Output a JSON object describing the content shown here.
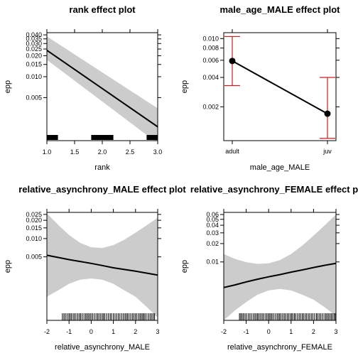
{
  "chart_data": [
    {
      "type": "line",
      "title": "rank effect plot",
      "xlabel": "rank",
      "ylabel": "epp",
      "xlim": [
        1.0,
        3.0
      ],
      "y_scale": "log",
      "ylim": [
        0.0012,
        0.043
      ],
      "x_ticks": [
        1.0,
        1.5,
        2.0,
        2.5,
        3.0
      ],
      "x_tick_labels": [
        "1.0",
        "1.5",
        "2.0",
        "2.5",
        "3.0"
      ],
      "y_ticks": [
        0.005,
        0.01,
        0.015,
        0.02,
        0.025,
        0.03,
        0.035,
        0.04
      ],
      "y_tick_labels": [
        "0.005",
        "0.010",
        "0.015",
        "0.020",
        "0.025",
        "0.030",
        "0.035",
        "0.040"
      ],
      "x": [
        1.0,
        3.0
      ],
      "fit": [
        0.024,
        0.0019
      ],
      "lower": [
        0.0175,
        0.0011
      ],
      "upper": [
        0.038,
        0.0035
      ],
      "rug_segments": [
        [
          1.0,
          1.2
        ],
        [
          1.8,
          2.2
        ],
        [
          2.8,
          3.0
        ]
      ]
    },
    {
      "type": "line",
      "title": "male_age_MALE effect plot",
      "xlabel": "male_age_MALE",
      "ylabel": "epp",
      "y_scale": "log",
      "ylim": [
        0.0009,
        0.0115
      ],
      "categories": [
        "adult",
        "juv"
      ],
      "values": [
        0.0059,
        0.0017
      ],
      "lower": [
        0.0033,
        0.00095
      ],
      "upper": [
        0.0105,
        0.004
      ],
      "y_ticks": [
        0.002,
        0.004,
        0.006,
        0.008,
        0.01
      ],
      "y_tick_labels": [
        "0.002",
        "0.004",
        "0.006",
        "0.008",
        "0.010"
      ],
      "colors": {
        "error_bar": "#cc1f1f",
        "line": "#000000"
      }
    },
    {
      "type": "line",
      "title": "relative_asynchrony_MALE effect plot",
      "xlabel": "relative_asynchrony_MALE",
      "ylabel": "epp",
      "xlim": [
        -2,
        3
      ],
      "y_scale": "log",
      "ylim": [
        0.00045,
        0.027
      ],
      "x_ticks": [
        -2,
        -1,
        0,
        1,
        2,
        3
      ],
      "x_tick_labels": [
        "-2",
        "-1",
        "0",
        "1",
        "2",
        "3"
      ],
      "y_ticks": [
        0.005,
        0.01,
        0.015,
        0.02,
        0.025
      ],
      "y_tick_labels": [
        "0.005",
        "0.010",
        "0.015",
        "0.020",
        "0.025"
      ],
      "x": [
        -2,
        -1.5,
        -1,
        -0.5,
        0,
        0.5,
        1,
        1.5,
        2,
        2.5,
        3
      ],
      "fit": [
        0.0053,
        0.0049,
        0.0045,
        0.0042,
        0.0039,
        0.0036,
        0.0033,
        0.0031,
        0.0029,
        0.0027,
        0.0025
      ],
      "lower": [
        0.0011,
        0.0014,
        0.0018,
        0.0021,
        0.0022,
        0.0021,
        0.0018,
        0.0014,
        0.0011,
        0.00075,
        0.0005
      ],
      "upper": [
        0.026,
        0.017,
        0.0115,
        0.0085,
        0.0072,
        0.007,
        0.0078,
        0.0096,
        0.0125,
        0.0165,
        0.022
      ],
      "rug_range": [
        -1.3,
        2.9
      ]
    },
    {
      "type": "line",
      "title": "relative_asynchrony_FEMALE effect plot",
      "xlabel": "relative_asynchrony_FEMALE",
      "ylabel": "epp",
      "xlim": [
        -2,
        3
      ],
      "y_scale": "log",
      "ylim": [
        0.0011,
        0.065
      ],
      "x_ticks": [
        -2,
        -1,
        0,
        1,
        2,
        3
      ],
      "x_tick_labels": [
        "-2",
        "-1",
        "0",
        "1",
        "2",
        "3"
      ],
      "y_ticks": [
        0.01,
        0.02,
        0.03,
        0.04,
        0.05,
        0.06
      ],
      "y_tick_labels": [
        "0.01",
        "0.02",
        "0.03",
        "0.04",
        "0.05",
        "0.06"
      ],
      "x": [
        -2,
        -1.5,
        -1,
        -0.5,
        0,
        0.5,
        1,
        1.5,
        2,
        2.5,
        3
      ],
      "fit": [
        0.0038,
        0.0042,
        0.0047,
        0.0052,
        0.0057,
        0.0062,
        0.0068,
        0.0074,
        0.0081,
        0.0088,
        0.0095
      ],
      "lower": [
        0.0011,
        0.0016,
        0.0022,
        0.0029,
        0.0034,
        0.0036,
        0.0034,
        0.0029,
        0.0024,
        0.0018,
        0.0013
      ],
      "upper": [
        0.0135,
        0.0112,
        0.0099,
        0.0093,
        0.0095,
        0.0107,
        0.0135,
        0.0185,
        0.027,
        0.04,
        0.06
      ],
      "rug_range": [
        -1.3,
        3.0
      ]
    }
  ]
}
